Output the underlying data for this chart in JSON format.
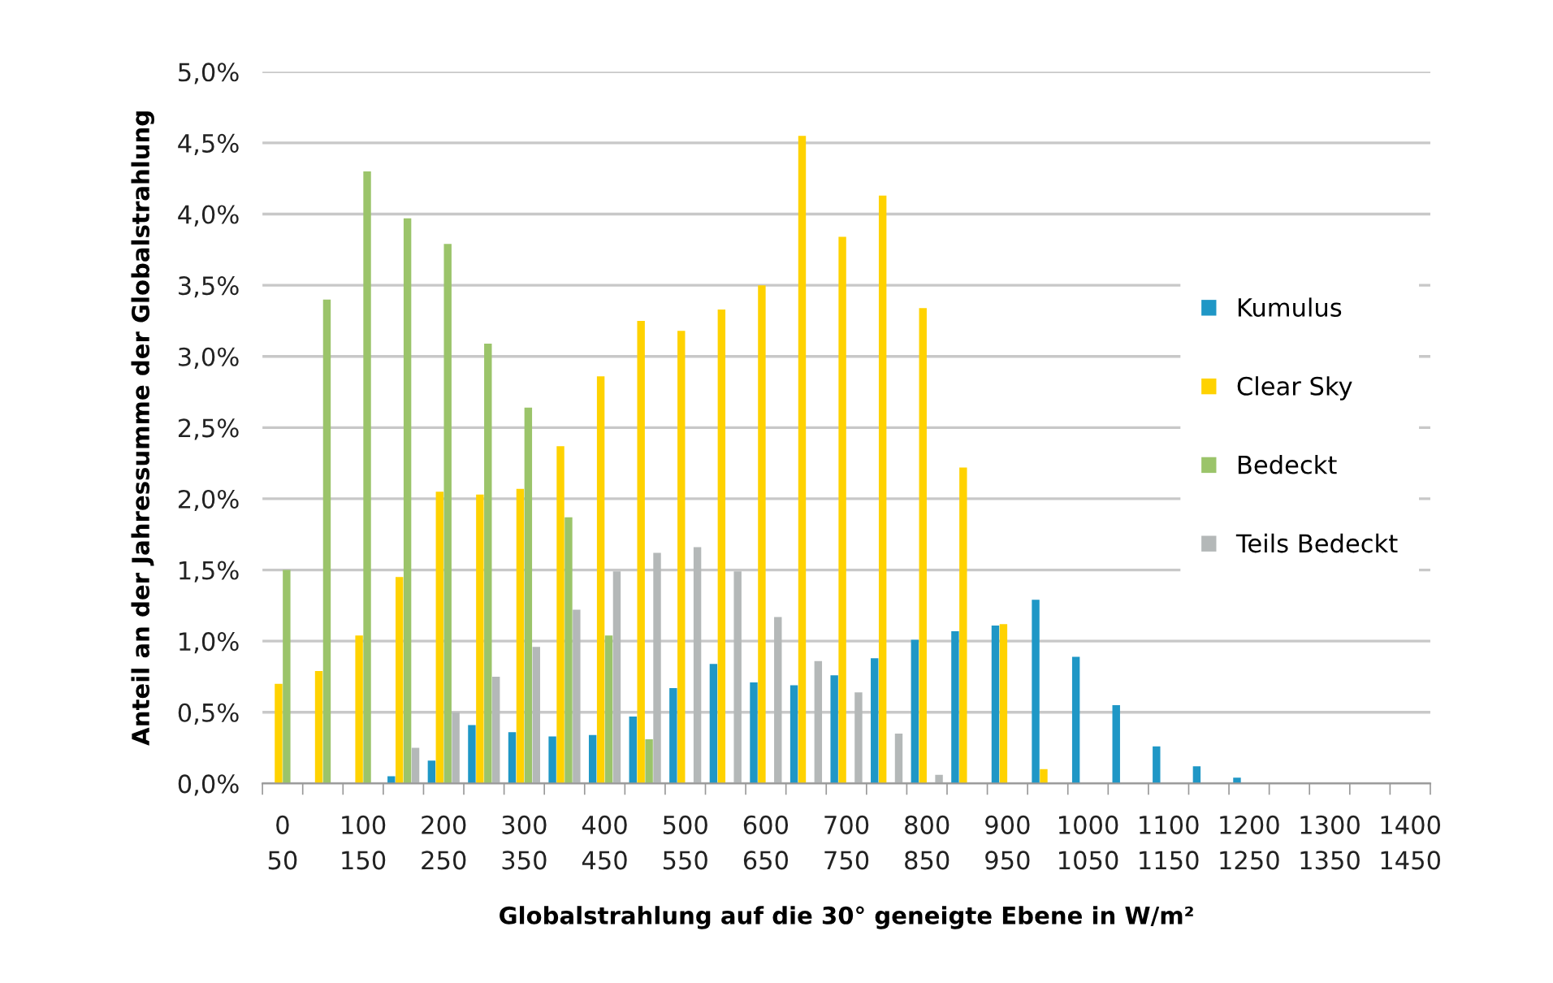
{
  "chart_data": {
    "type": "bar",
    "xlabel": "Globalstrahlung auf die 30° geneigte Ebene in W/m²",
    "ylabel": "Anteil an der Jahressumme der Globalstrahlung",
    "categories": [
      "0\n50",
      null,
      "100\n150",
      null,
      "200\n250",
      null,
      "300\n350",
      null,
      "400\n450",
      null,
      "500\n550",
      null,
      "600\n650",
      null,
      "700\n750",
      null,
      "800\n850",
      null,
      "900\n950",
      null,
      "1000\n1050",
      null,
      "1100\n1150",
      null,
      "1200\n1250",
      null,
      "1300\n1350",
      null,
      "1400\n1450"
    ],
    "series": [
      {
        "name": "Kumulus",
        "color": "#1f97c6",
        "values": [
          0,
          0,
          0,
          0.05,
          0.16,
          0.41,
          0.36,
          0.33,
          0.34,
          0.47,
          0.67,
          0.84,
          0.71,
          0.69,
          0.76,
          0.88,
          1.01,
          1.07,
          1.11,
          1.29,
          0.89,
          0.55,
          0.26,
          0.12,
          0.04,
          null,
          0,
          0,
          0
        ]
      },
      {
        "name": "Clear Sky",
        "color": "#ffd200",
        "values": [
          0.7,
          0.79,
          1.04,
          1.45,
          2.05,
          2.03,
          2.07,
          2.37,
          2.86,
          3.25,
          3.18,
          3.33,
          3.5,
          4.55,
          3.84,
          4.13,
          3.34,
          2.22,
          1.12,
          0.1,
          0,
          0,
          0,
          0,
          0,
          0,
          0,
          0,
          0
        ]
      },
      {
        "name": "Bedeckt",
        "color": "#9bc46a",
        "values": [
          1.5,
          3.4,
          4.3,
          3.97,
          3.79,
          3.09,
          2.64,
          1.87,
          1.04,
          0.31,
          0,
          0,
          0,
          0,
          0,
          0,
          0,
          0,
          0,
          0,
          0,
          0,
          0,
          0,
          0,
          0,
          0,
          0,
          0
        ]
      },
      {
        "name": "Teils Bedeckt",
        "color": "#b4b8b8",
        "values": [
          null,
          0,
          null,
          0.25,
          0.5,
          0.75,
          0.96,
          1.22,
          1.49,
          1.62,
          1.66,
          1.49,
          1.17,
          0.86,
          0.64,
          0.35,
          0.06,
          0,
          0,
          0,
          0,
          0,
          0,
          0,
          0,
          0,
          0,
          0,
          0
        ]
      }
    ],
    "ylim": [
      0,
      5.0
    ],
    "yticks": [
      {
        "value": 0,
        "label": "0,0%"
      },
      {
        "value": 0.5,
        "label": "0,5%"
      },
      {
        "value": 1.0,
        "label": "1,0%"
      },
      {
        "value": 1.5,
        "label": "1,5%"
      },
      {
        "value": 2.0,
        "label": "2,0%"
      },
      {
        "value": 2.5,
        "label": "2,5%"
      },
      {
        "value": 3.0,
        "label": "3,0%"
      },
      {
        "value": 3.5,
        "label": "3,5%"
      },
      {
        "value": 4.0,
        "label": "4,0%"
      },
      {
        "value": 4.5,
        "label": "4,5%"
      },
      {
        "value": 5.0,
        "label": "5,0%"
      }
    ],
    "grid": "y",
    "legend": "center right"
  }
}
